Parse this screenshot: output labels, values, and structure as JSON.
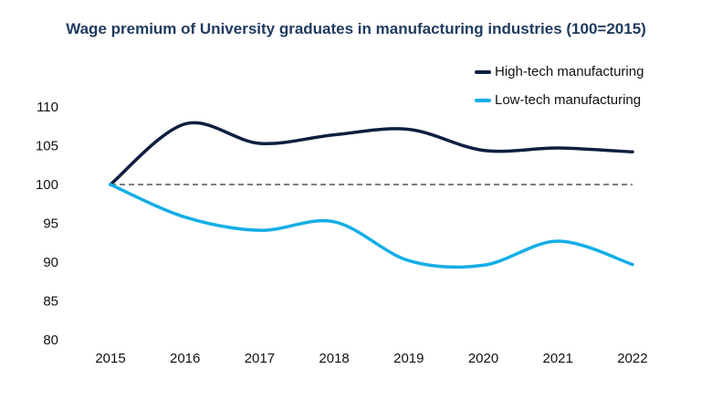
{
  "chart_data": {
    "type": "line",
    "title": "Wage premium of University graduates in manufacturing industries (100=2015)",
    "xlabel": "",
    "ylabel": "",
    "categories": [
      "2015",
      "2016",
      "2017",
      "2018",
      "2019",
      "2020",
      "2021",
      "2022"
    ],
    "ylim": [
      80,
      110
    ],
    "yticks": [
      "80",
      "85",
      "90",
      "95",
      "100",
      "105",
      "110"
    ],
    "reference_line": {
      "value": 100,
      "style": "dashed",
      "color": "#7f7f7f"
    },
    "series": [
      {
        "name": "High-tech manufacturing",
        "color": "#0d1f40",
        "values": [
          100,
          107.8,
          105.3,
          106.4,
          107.1,
          104.4,
          104.7,
          104.2
        ]
      },
      {
        "name": "Low-tech manufacturing",
        "color": "#13aee6",
        "values": [
          100,
          95.8,
          94.1,
          95.2,
          90.2,
          89.6,
          92.7,
          89.7
        ]
      }
    ],
    "legend_position": "top-right"
  }
}
